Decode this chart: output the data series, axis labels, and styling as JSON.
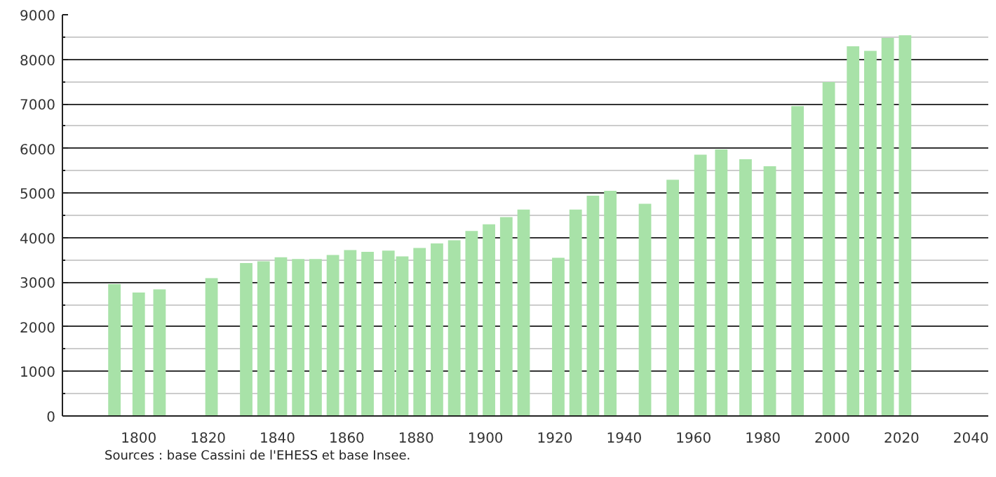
{
  "chart_data": {
    "type": "bar",
    "x": [
      1793,
      1800,
      1806,
      1821,
      1831,
      1836,
      1841,
      1846,
      1851,
      1856,
      1861,
      1866,
      1872,
      1876,
      1881,
      1886,
      1891,
      1896,
      1901,
      1906,
      1911,
      1921,
      1926,
      1931,
      1936,
      1946,
      1954,
      1962,
      1968,
      1975,
      1982,
      1990,
      1999,
      2006,
      2011,
      2016,
      2021
    ],
    "values": [
      2960,
      2770,
      2840,
      3090,
      3430,
      3470,
      3560,
      3520,
      3520,
      3610,
      3720,
      3680,
      3710,
      3580,
      3770,
      3870,
      3940,
      4150,
      4300,
      4460,
      4630,
      3550,
      4630,
      4940,
      5050,
      4760,
      5300,
      5860,
      5980,
      5760,
      5600,
      6950,
      7490,
      8290,
      8190,
      8480,
      8540
    ],
    "color": "#a8e2a8",
    "xlim": [
      1778,
      2045
    ],
    "xticks": [
      1800,
      1820,
      1840,
      1860,
      1880,
      1900,
      1920,
      1940,
      1960,
      1980,
      2000,
      2020,
      2040
    ],
    "ylim": [
      0,
      9000
    ],
    "yticks": [
      0,
      1000,
      2000,
      3000,
      4000,
      5000,
      6000,
      7000,
      8000,
      9000
    ],
    "grid": "y",
    "annotations": [
      "Sources : base Cassini de l'EHESS et base Insee."
    ]
  }
}
